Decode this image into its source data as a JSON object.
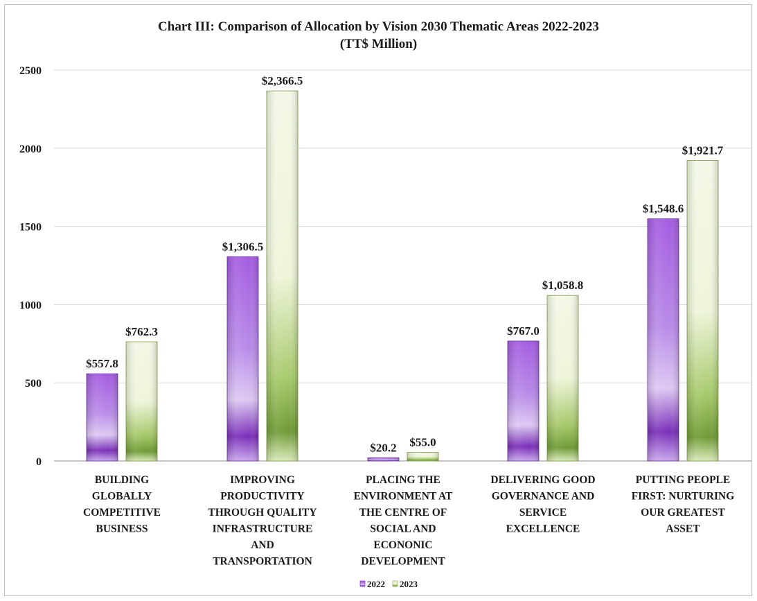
{
  "chart_data": {
    "type": "bar",
    "title": "Chart III:  Comparison  of Allocation by Vision  2030 Thematic Areas 2022-2023",
    "subtitle": "(TT$ Million)",
    "categories": [
      "BUILDING GLOBALLY COMPETITIVE BUSINESS",
      "IMPROVING PRODUCTIVITY THROUGH QUALITY INFRASTRUCTURE AND TRANSPORTATION",
      "PLACING THE ENVIRONMENT AT THE CENTRE OF SOCIAL AND ECONONIC DEVELOPMENT",
      "DELIVERING GOOD GOVERNANCE AND SERVICE EXCELLENCE",
      "PUTTING PEOPLE FIRST: NURTURING OUR GREATEST ASSET"
    ],
    "category_lines": [
      [
        "BUILDING",
        "GLOBALLY",
        "COMPETITIVE",
        "BUSINESS"
      ],
      [
        "IMPROVING",
        "PRODUCTIVITY",
        "THROUGH QUALITY",
        "INFRASTRUCTURE",
        "AND",
        "TRANSPORTATION"
      ],
      [
        "PLACING THE",
        "ENVIRONMENT AT",
        "THE CENTRE OF",
        "SOCIAL AND",
        "ECONONIC",
        "DEVELOPMENT"
      ],
      [
        "DELIVERING GOOD",
        "GOVERNANCE AND",
        "SERVICE",
        "EXCELLENCE"
      ],
      [
        "PUTTING PEOPLE",
        "FIRST: NURTURING",
        "OUR GREATEST",
        "ASSET"
      ]
    ],
    "series": [
      {
        "name": "2022",
        "values": [
          557.8,
          1306.5,
          20.2,
          767.0,
          1548.6
        ],
        "labels": [
          "$557.8",
          "$1,306.5",
          "$20.2",
          "$767.0",
          "$1,548.6"
        ],
        "color": "#9b4fd6"
      },
      {
        "name": "2023",
        "values": [
          762.3,
          2366.5,
          55.0,
          1058.8,
          1921.7
        ],
        "labels": [
          "$762.3",
          "$2,366.5",
          "$55.0",
          "$1,058.8",
          "$1,921.7"
        ],
        "color": "#8fb04a"
      }
    ],
    "yticks": [
      "0",
      "500",
      "1000",
      "1500",
      "2000",
      "2500"
    ],
    "ylim": [
      0,
      2500
    ],
    "grid": true,
    "legend": "bottom"
  }
}
